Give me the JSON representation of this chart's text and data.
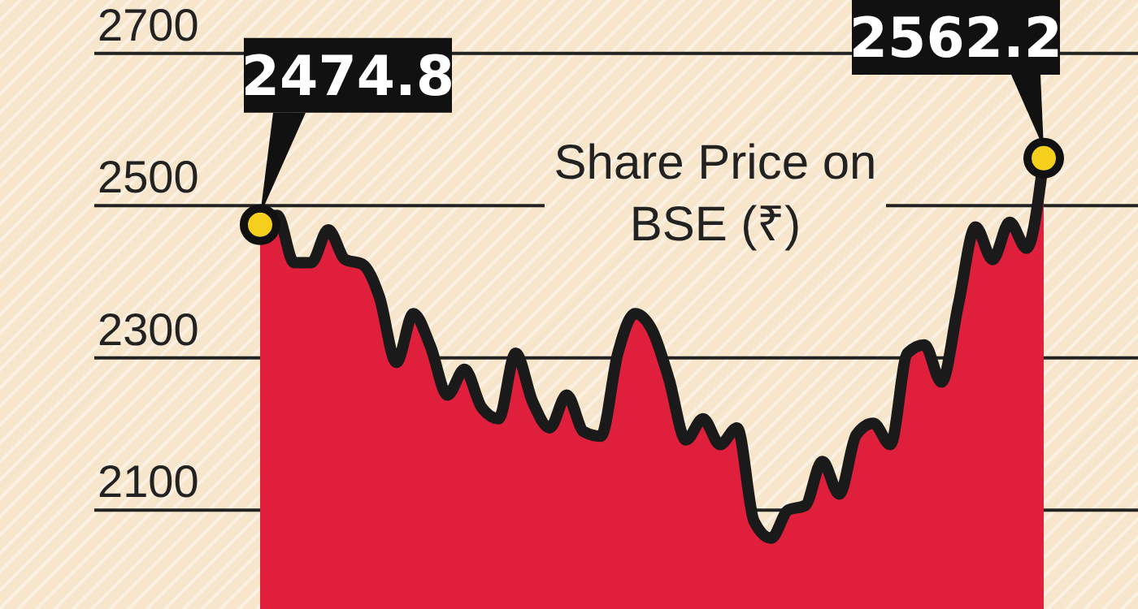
{
  "chart_data": {
    "type": "area",
    "categories": [
      null,
      null,
      null,
      null,
      null,
      null,
      null,
      null,
      null,
      null,
      null,
      null,
      null,
      null,
      null,
      null,
      null,
      null,
      null,
      null,
      null,
      null,
      null,
      null,
      null,
      null,
      null,
      null,
      null,
      null,
      null,
      null,
      null,
      null,
      null,
      null,
      null,
      null,
      null,
      null,
      null,
      null,
      null,
      null,
      null,
      null,
      null
    ],
    "series": [
      {
        "name": "Share Price on BSE (₹)",
        "color": "#e01f3d",
        "values": [
          2474.8,
          2487,
          2425,
          2425,
          2468,
          2429,
          2423,
          2380,
          2294,
          2358,
          2315,
          2251,
          2285,
          2235,
          2220,
          2306,
          2242,
          2208,
          2251,
          2203,
          2197,
          2306,
          2358,
          2337,
          2272,
          2192,
          2220,
          2186,
          2208,
          2085,
          2063,
          2100,
          2106,
          2164,
          2121,
          2199,
          2214,
          2186,
          2306,
          2317,
          2268,
          2371,
          2472,
          2429,
          2478,
          2444,
          2562.2
        ],
        "value_labels": [
          "2474.8",
          null,
          null,
          null,
          null,
          null,
          null,
          null,
          null,
          null,
          null,
          null,
          null,
          null,
          null,
          null,
          null,
          null,
          null,
          null,
          null,
          null,
          null,
          null,
          null,
          null,
          null,
          null,
          null,
          null,
          null,
          null,
          null,
          null,
          null,
          null,
          null,
          null,
          null,
          null,
          null,
          null,
          null,
          null,
          null,
          null,
          "2562.2"
        ]
      }
    ],
    "ylim": [
      1970,
      2770
    ],
    "yticks": [
      2100,
      2300,
      2500,
      2700
    ],
    "grid": "y",
    "legend": "top",
    "marker": "none",
    "line_style": "solid"
  }
}
